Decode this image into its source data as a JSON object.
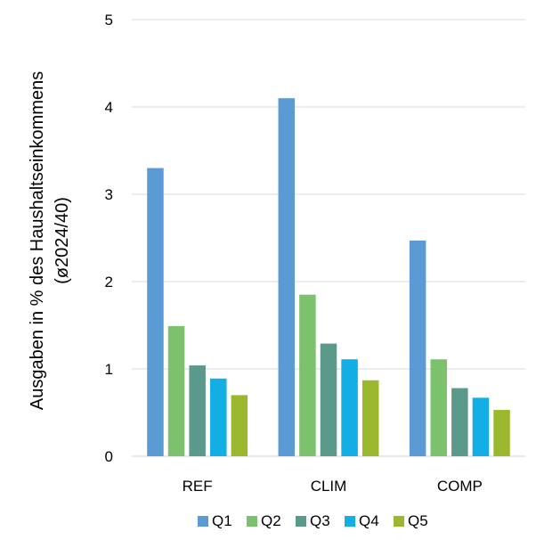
{
  "chart_data": {
    "type": "bar",
    "title": "",
    "xlabel": "",
    "ylabel": "Ausgaben in % des  Haushaltseinkommens",
    "ylabel_line2": "(ø2024/40)",
    "ylim": [
      0,
      5
    ],
    "yticks": [
      0,
      1,
      2,
      3,
      4,
      5
    ],
    "grid": true,
    "legend_position": "bottom",
    "categories": [
      "REF",
      "CLIM",
      "COMP"
    ],
    "series": [
      {
        "name": "Q1",
        "color": "#5B9BD5",
        "values": [
          3.3,
          4.1,
          2.47
        ]
      },
      {
        "name": "Q2",
        "color": "#7BC16E",
        "values": [
          1.49,
          1.85,
          1.11
        ]
      },
      {
        "name": "Q3",
        "color": "#5B9A8B",
        "values": [
          1.04,
          1.29,
          0.78
        ]
      },
      {
        "name": "Q4",
        "color": "#12AEE4",
        "values": [
          0.89,
          1.11,
          0.67
        ]
      },
      {
        "name": "Q5",
        "color": "#9AB72E",
        "values": [
          0.7,
          0.87,
          0.53
        ]
      }
    ]
  }
}
